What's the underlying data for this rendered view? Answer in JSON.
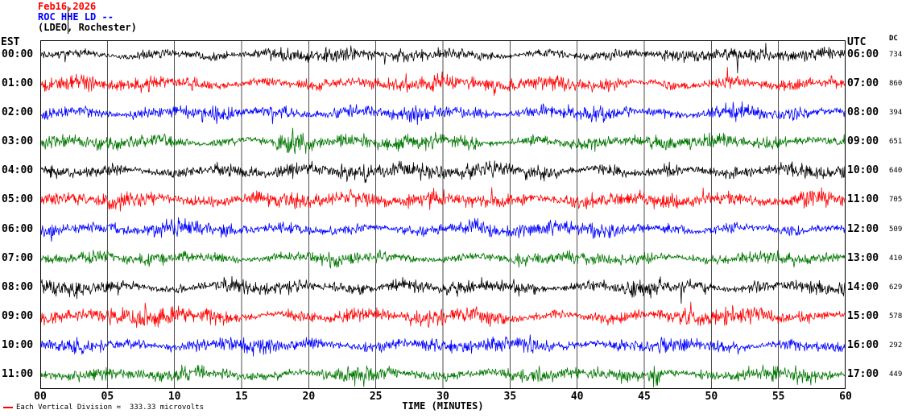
{
  "header": {
    "date": "Feb16,2026",
    "station": "ROC HHE LD --",
    "location": "(LDEO, Rochester)"
  },
  "axes": {
    "left_label": "EST",
    "right_label": "UTC",
    "dc_label": "DC",
    "x_title": "TIME (MINUTES)",
    "x_ticks": [
      "00",
      "05",
      "10",
      "15",
      "20",
      "25",
      "30",
      "35",
      "40",
      "45",
      "50",
      "55",
      "60"
    ]
  },
  "footer": {
    "scale_note": "Each Vertical Division =  333.33 microvolts"
  },
  "colors": {
    "date": "#ff0000",
    "station": "#0000ff",
    "location": "#000000",
    "frame": "#000000",
    "gridline": "#000000",
    "scale_marker": "#ff0000",
    "trace_cycle": [
      "#000000",
      "#ff0000",
      "#0000ff",
      "#007700"
    ]
  },
  "chart_data": {
    "type": "line",
    "title": "ROC HHE LD -- (LDEO, Rochester) webicorder record Feb16,2026",
    "xlabel": "TIME (MINUTES)",
    "x_range_minutes": [
      0,
      60
    ],
    "grid_interval_minutes": 5,
    "microvolts_per_division": 333.33,
    "rows": [
      {
        "est": "00:00",
        "utc": "06:00",
        "dc": "734",
        "color": "#000000",
        "amp": 1.0,
        "seed": 101
      },
      {
        "est": "01:00",
        "utc": "07:00",
        "dc": "860",
        "color": "#ff0000",
        "amp": 1.15,
        "seed": 202
      },
      {
        "est": "02:00",
        "utc": "08:00",
        "dc": "394",
        "color": "#0000ff",
        "amp": 1.1,
        "seed": 303
      },
      {
        "est": "03:00",
        "utc": "09:00",
        "dc": "651",
        "color": "#007700",
        "amp": 1.15,
        "seed": 404
      },
      {
        "est": "04:00",
        "utc": "10:00",
        "dc": "640",
        "color": "#000000",
        "amp": 1.2,
        "seed": 505
      },
      {
        "est": "05:00",
        "utc": "11:00",
        "dc": "705",
        "color": "#ff0000",
        "amp": 1.25,
        "seed": 606
      },
      {
        "est": "06:00",
        "utc": "12:00",
        "dc": "509",
        "color": "#0000ff",
        "amp": 1.1,
        "seed": 707
      },
      {
        "est": "07:00",
        "utc": "13:00",
        "dc": "410",
        "color": "#007700",
        "amp": 1.0,
        "seed": 808
      },
      {
        "est": "08:00",
        "utc": "14:00",
        "dc": "629",
        "color": "#000000",
        "amp": 1.15,
        "seed": 909
      },
      {
        "est": "09:00",
        "utc": "15:00",
        "dc": "578",
        "color": "#ff0000",
        "amp": 1.2,
        "seed": 1010
      },
      {
        "est": "10:00",
        "utc": "16:00",
        "dc": "292",
        "color": "#0000ff",
        "amp": 1.1,
        "seed": 1111
      },
      {
        "est": "11:00",
        "utc": "17:00",
        "dc": "449",
        "color": "#007700",
        "amp": 1.1,
        "seed": 1212
      }
    ],
    "events": [
      {
        "row": 3,
        "minute": 19.0,
        "width": 1.5,
        "strength": 0.8
      },
      {
        "row": 5,
        "minute": 25.0,
        "width": 2.5,
        "strength": 0.6
      },
      {
        "row": 9,
        "minute": 7.0,
        "width": 1.2,
        "strength": 0.9
      },
      {
        "row": 10,
        "minute": 36.6,
        "width": 0.4,
        "strength": 1.8
      },
      {
        "row": 11,
        "minute": 45.9,
        "width": 0.3,
        "strength": 4.5
      }
    ]
  }
}
